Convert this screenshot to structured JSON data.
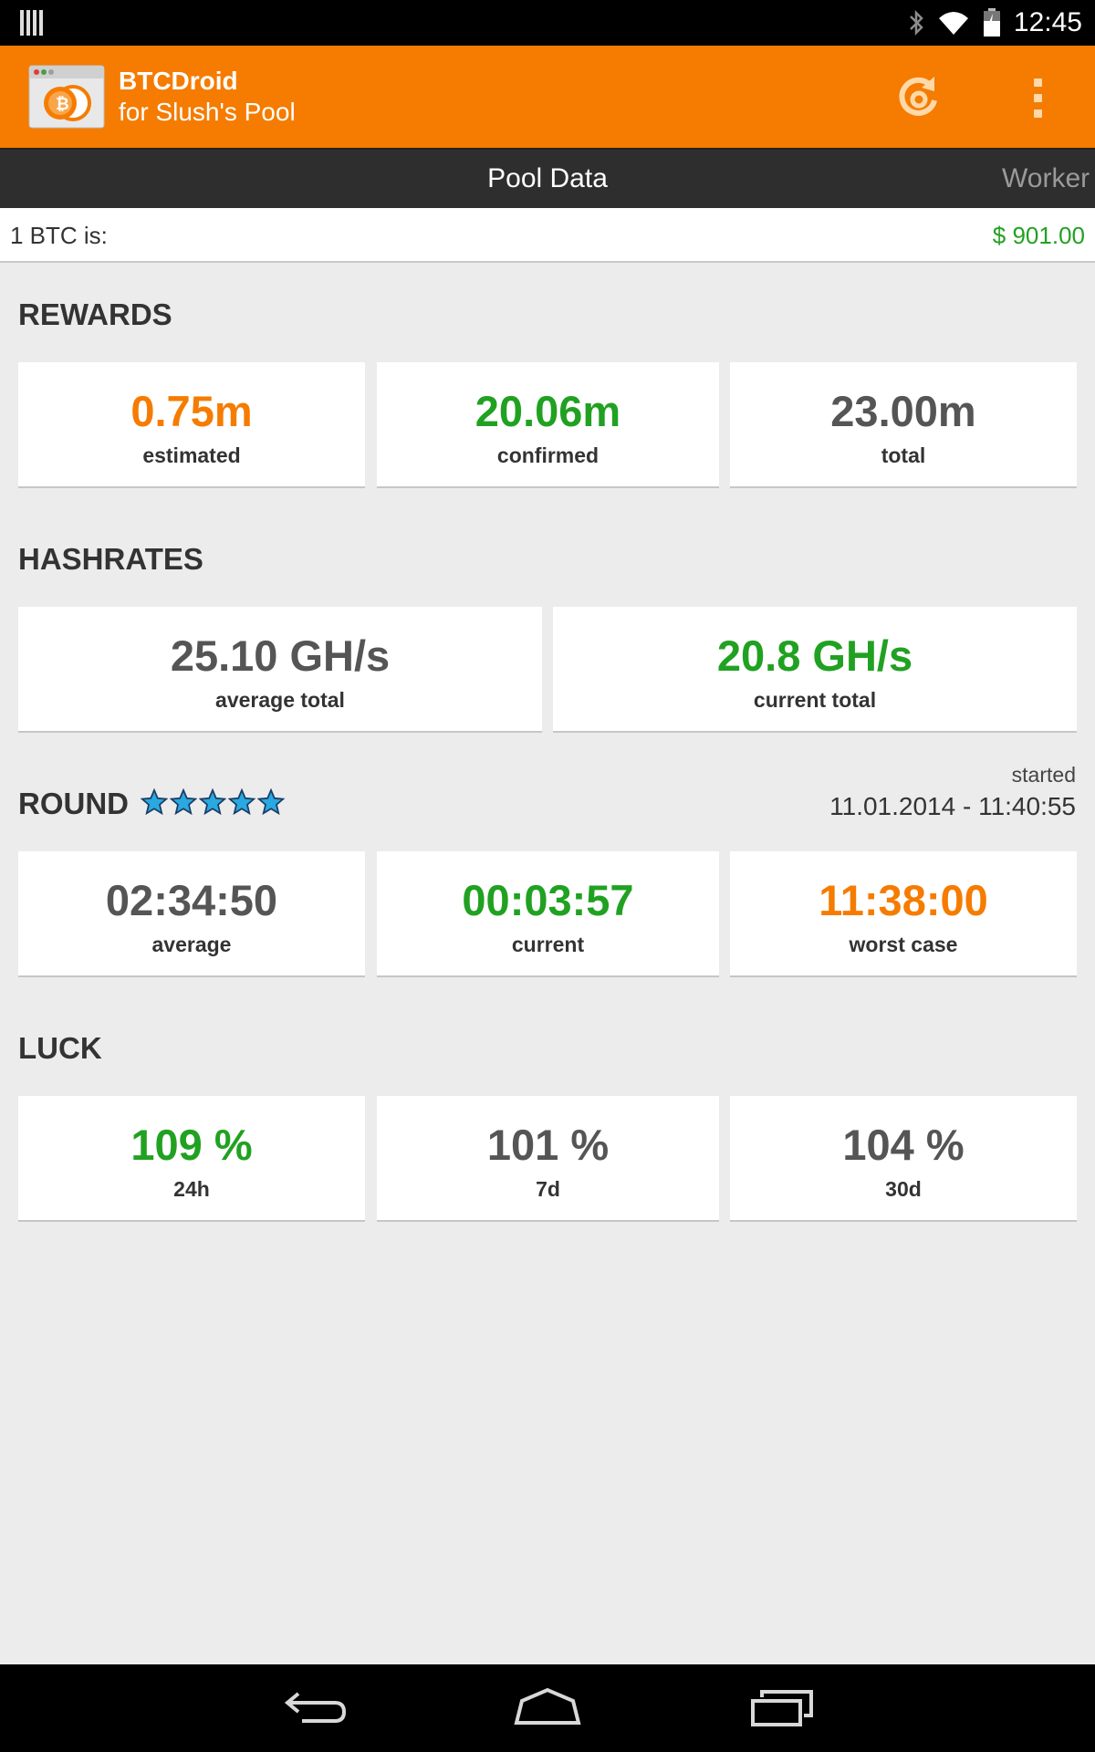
{
  "status_bar": {
    "time": "12:45",
    "icons": [
      "notification-bars-icon",
      "bluetooth-icon",
      "wifi-icon",
      "battery-icon"
    ]
  },
  "action_bar": {
    "title": "BTCDroid",
    "subtitle": "for Slush's Pool",
    "icons": [
      "app-logo-icon",
      "refresh-icon",
      "overflow-menu-icon"
    ]
  },
  "tabs": {
    "active": "Pool Data",
    "next": "Worker"
  },
  "price": {
    "label": "1 BTC is:",
    "value": "$ 901.00"
  },
  "rewards": {
    "title": "REWARDS",
    "cards": [
      {
        "value": "0.75m",
        "label": "estimated"
      },
      {
        "value": "20.06m",
        "label": "confirmed"
      },
      {
        "value": "23.00m",
        "label": "total"
      }
    ]
  },
  "hashrates": {
    "title": "HASHRATES",
    "cards": [
      {
        "value": "25.10 GH/s",
        "label": "average total"
      },
      {
        "value": "20.8 GH/s",
        "label": "current total"
      }
    ]
  },
  "round": {
    "title": "ROUND",
    "stars": 5,
    "started_label": "started",
    "started_value": "11.01.2014 - 11:40:55",
    "cards": [
      {
        "value": "02:34:50",
        "label": "average"
      },
      {
        "value": "00:03:57",
        "label": "current"
      },
      {
        "value": "11:38:00",
        "label": "worst case"
      }
    ]
  },
  "luck": {
    "title": "LUCK",
    "cards": [
      {
        "value": "109 %",
        "label": "24h"
      },
      {
        "value": "101 %",
        "label": "7d"
      },
      {
        "value": "104 %",
        "label": "30d"
      }
    ]
  },
  "colors": {
    "accent": "#f57c00",
    "positive": "#21a121",
    "neutral": "#555555"
  },
  "nav_bar": {
    "icons": [
      "back-icon",
      "home-icon",
      "recents-icon"
    ]
  }
}
